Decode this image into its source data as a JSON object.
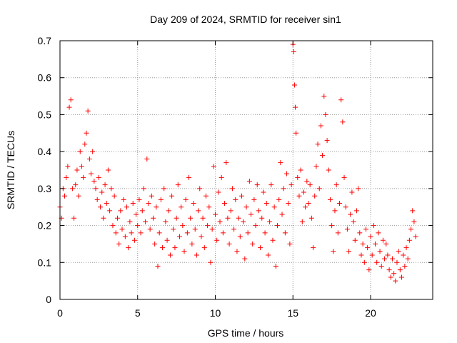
{
  "chart_data": {
    "type": "scatter",
    "title": "Day 209 of 2024, SRMTID for receiver sin1",
    "xlabel": "GPS time / hours",
    "ylabel": "SRMTID / TECUs",
    "xlim": [
      0,
      24
    ],
    "ylim": [
      0,
      0.7
    ],
    "xticks": [
      0,
      5,
      10,
      15,
      20
    ],
    "yticks": [
      0,
      0.1,
      0.2,
      0.3,
      0.4,
      0.5,
      0.6,
      0.7
    ],
    "grid": true,
    "marker": "+",
    "color": "#ff0000",
    "series": [
      {
        "name": "SRMTID",
        "points": [
          [
            0.0,
            0.25
          ],
          [
            0.1,
            0.22
          ],
          [
            0.2,
            0.3
          ],
          [
            0.3,
            0.28
          ],
          [
            0.4,
            0.33
          ],
          [
            0.5,
            0.36
          ],
          [
            0.6,
            0.52
          ],
          [
            0.7,
            0.54
          ],
          [
            0.8,
            0.3
          ],
          [
            0.9,
            0.22
          ],
          [
            1.0,
            0.31
          ],
          [
            1.1,
            0.35
          ],
          [
            1.2,
            0.28
          ],
          [
            1.3,
            0.4
          ],
          [
            1.4,
            0.36
          ],
          [
            1.5,
            0.33
          ],
          [
            1.6,
            0.42
          ],
          [
            1.7,
            0.45
          ],
          [
            1.8,
            0.51
          ],
          [
            1.9,
            0.38
          ],
          [
            2.0,
            0.34
          ],
          [
            2.1,
            0.4
          ],
          [
            2.2,
            0.32
          ],
          [
            2.3,
            0.3
          ],
          [
            2.4,
            0.27
          ],
          [
            2.5,
            0.33
          ],
          [
            2.6,
            0.25
          ],
          [
            2.7,
            0.29
          ],
          [
            2.8,
            0.22
          ],
          [
            2.9,
            0.31
          ],
          [
            3.0,
            0.26
          ],
          [
            3.1,
            0.35
          ],
          [
            3.2,
            0.24
          ],
          [
            3.3,
            0.3
          ],
          [
            3.4,
            0.2
          ],
          [
            3.5,
            0.28
          ],
          [
            3.6,
            0.18
          ],
          [
            3.7,
            0.22
          ],
          [
            3.8,
            0.15
          ],
          [
            3.9,
            0.24
          ],
          [
            4.0,
            0.19
          ],
          [
            4.1,
            0.27
          ],
          [
            4.2,
            0.17
          ],
          [
            4.3,
            0.25
          ],
          [
            4.4,
            0.14
          ],
          [
            4.5,
            0.21
          ],
          [
            4.6,
            0.18
          ],
          [
            4.7,
            0.26
          ],
          [
            4.8,
            0.16
          ],
          [
            4.9,
            0.23
          ],
          [
            5.0,
            0.2
          ],
          [
            5.1,
            0.27
          ],
          [
            5.2,
            0.18
          ],
          [
            5.3,
            0.24
          ],
          [
            5.4,
            0.3
          ],
          [
            5.5,
            0.21
          ],
          [
            5.6,
            0.38
          ],
          [
            5.7,
            0.26
          ],
          [
            5.8,
            0.19
          ],
          [
            5.9,
            0.28
          ],
          [
            6.0,
            0.22
          ],
          [
            6.1,
            0.15
          ],
          [
            6.2,
            0.25
          ],
          [
            6.3,
            0.09
          ],
          [
            6.4,
            0.18
          ],
          [
            6.5,
            0.27
          ],
          [
            6.6,
            0.14
          ],
          [
            6.7,
            0.3
          ],
          [
            6.8,
            0.21
          ],
          [
            6.9,
            0.16
          ],
          [
            7.0,
            0.24
          ],
          [
            7.1,
            0.12
          ],
          [
            7.2,
            0.28
          ],
          [
            7.3,
            0.19
          ],
          [
            7.4,
            0.14
          ],
          [
            7.5,
            0.22
          ],
          [
            7.6,
            0.31
          ],
          [
            7.7,
            0.17
          ],
          [
            7.8,
            0.25
          ],
          [
            7.9,
            0.2
          ],
          [
            8.0,
            0.13
          ],
          [
            8.1,
            0.27
          ],
          [
            8.2,
            0.18
          ],
          [
            8.3,
            0.33
          ],
          [
            8.4,
            0.22
          ],
          [
            8.5,
            0.15
          ],
          [
            8.6,
            0.26
          ],
          [
            8.7,
            0.19
          ],
          [
            8.8,
            0.12
          ],
          [
            8.9,
            0.24
          ],
          [
            9.0,
            0.3
          ],
          [
            9.1,
            0.17
          ],
          [
            9.2,
            0.22
          ],
          [
            9.3,
            0.14
          ],
          [
            9.4,
            0.28
          ],
          [
            9.5,
            0.2
          ],
          [
            9.6,
            0.25
          ],
          [
            9.7,
            0.1
          ],
          [
            9.8,
            0.19
          ],
          [
            9.9,
            0.36
          ],
          [
            10.0,
            0.23
          ],
          [
            10.1,
            0.16
          ],
          [
            10.2,
            0.29
          ],
          [
            10.3,
            0.21
          ],
          [
            10.4,
            0.33
          ],
          [
            10.5,
            0.18
          ],
          [
            10.6,
            0.26
          ],
          [
            10.7,
            0.37
          ],
          [
            10.8,
            0.22
          ],
          [
            10.9,
            0.15
          ],
          [
            11.0,
            0.24
          ],
          [
            11.1,
            0.3
          ],
          [
            11.2,
            0.19
          ],
          [
            11.3,
            0.27
          ],
          [
            11.4,
            0.13
          ],
          [
            11.5,
            0.22
          ],
          [
            11.6,
            0.17
          ],
          [
            11.7,
            0.28
          ],
          [
            11.8,
            0.21
          ],
          [
            11.9,
            0.11
          ],
          [
            12.0,
            0.25
          ],
          [
            12.1,
            0.18
          ],
          [
            12.2,
            0.32
          ],
          [
            12.3,
            0.23
          ],
          [
            12.4,
            0.15
          ],
          [
            12.5,
            0.27
          ],
          [
            12.6,
            0.2
          ],
          [
            12.7,
            0.31
          ],
          [
            12.8,
            0.24
          ],
          [
            12.9,
            0.14
          ],
          [
            13.0,
            0.22
          ],
          [
            13.1,
            0.29
          ],
          [
            13.2,
            0.18
          ],
          [
            13.3,
            0.26
          ],
          [
            13.4,
            0.12
          ],
          [
            13.5,
            0.21
          ],
          [
            13.6,
            0.31
          ],
          [
            13.7,
            0.16
          ],
          [
            13.8,
            0.25
          ],
          [
            13.9,
            0.09
          ],
          [
            14.0,
            0.2
          ],
          [
            14.1,
            0.27
          ],
          [
            14.2,
            0.37
          ],
          [
            14.3,
            0.23
          ],
          [
            14.4,
            0.3
          ],
          [
            14.5,
            0.18
          ],
          [
            14.6,
            0.34
          ],
          [
            14.7,
            0.26
          ],
          [
            14.8,
            0.15
          ],
          [
            14.9,
            0.31
          ],
          [
            15.0,
            0.69
          ],
          [
            15.05,
            0.67
          ],
          [
            15.1,
            0.58
          ],
          [
            15.15,
            0.52
          ],
          [
            15.2,
            0.45
          ],
          [
            15.3,
            0.33
          ],
          [
            15.4,
            0.28
          ],
          [
            15.5,
            0.35
          ],
          [
            15.6,
            0.21
          ],
          [
            15.7,
            0.29
          ],
          [
            15.8,
            0.25
          ],
          [
            15.9,
            0.32
          ],
          [
            16.0,
            0.26
          ],
          [
            16.1,
            0.31
          ],
          [
            16.2,
            0.22
          ],
          [
            16.3,
            0.14
          ],
          [
            16.4,
            0.28
          ],
          [
            16.5,
            0.36
          ],
          [
            16.6,
            0.42
          ],
          [
            16.7,
            0.3
          ],
          [
            16.8,
            0.47
          ],
          [
            16.9,
            0.39
          ],
          [
            17.0,
            0.55
          ],
          [
            17.1,
            0.5
          ],
          [
            17.2,
            0.43
          ],
          [
            17.3,
            0.35
          ],
          [
            17.4,
            0.27
          ],
          [
            17.5,
            0.2
          ],
          [
            17.6,
            0.13
          ],
          [
            17.7,
            0.24
          ],
          [
            17.8,
            0.31
          ],
          [
            17.9,
            0.18
          ],
          [
            18.0,
            0.26
          ],
          [
            18.1,
            0.54
          ],
          [
            18.2,
            0.48
          ],
          [
            18.3,
            0.33
          ],
          [
            18.4,
            0.25
          ],
          [
            18.5,
            0.19
          ],
          [
            18.6,
            0.13
          ],
          [
            18.7,
            0.23
          ],
          [
            18.8,
            0.29
          ],
          [
            18.9,
            0.21
          ],
          [
            19.0,
            0.16
          ],
          [
            19.1,
            0.24
          ],
          [
            19.2,
            0.3
          ],
          [
            19.3,
            0.18
          ],
          [
            19.4,
            0.12
          ],
          [
            19.5,
            0.15
          ],
          [
            19.6,
            0.1
          ],
          [
            19.7,
            0.19
          ],
          [
            19.8,
            0.14
          ],
          [
            19.9,
            0.08
          ],
          [
            20.0,
            0.17
          ],
          [
            20.1,
            0.12
          ],
          [
            20.2,
            0.2
          ],
          [
            20.3,
            0.15
          ],
          [
            20.4,
            0.1
          ],
          [
            20.5,
            0.18
          ],
          [
            20.6,
            0.13
          ],
          [
            20.7,
            0.09
          ],
          [
            20.8,
            0.16
          ],
          [
            20.9,
            0.11
          ],
          [
            21.0,
            0.15
          ],
          [
            21.1,
            0.12
          ],
          [
            21.2,
            0.08
          ],
          [
            21.3,
            0.06
          ],
          [
            21.4,
            0.11
          ],
          [
            21.5,
            0.07
          ],
          [
            21.6,
            0.05
          ],
          [
            21.7,
            0.1
          ],
          [
            21.8,
            0.13
          ],
          [
            21.9,
            0.08
          ],
          [
            22.0,
            0.06
          ],
          [
            22.1,
            0.12
          ],
          [
            22.2,
            0.09
          ],
          [
            22.3,
            0.14
          ],
          [
            22.4,
            0.11
          ],
          [
            22.5,
            0.16
          ],
          [
            22.6,
            0.19
          ],
          [
            22.7,
            0.24
          ],
          [
            22.8,
            0.21
          ],
          [
            22.9,
            0.17
          ]
        ]
      }
    ]
  }
}
